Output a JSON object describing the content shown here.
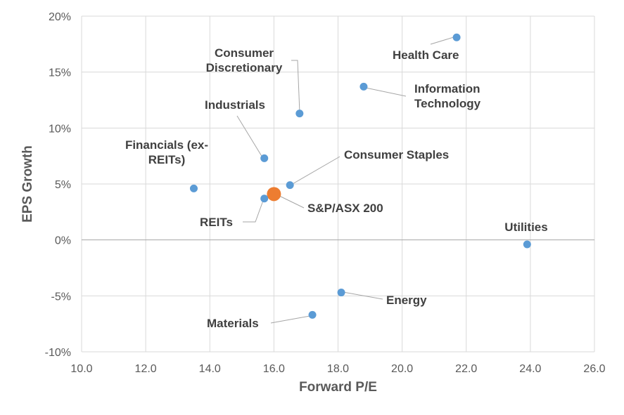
{
  "chart_data": {
    "type": "scatter",
    "xlabel": "Forward P/E",
    "ylabel": "EPS Growth",
    "xlim": [
      10,
      26
    ],
    "ylim": [
      -10,
      20
    ],
    "x_ticks": [
      "10.0",
      "12.0",
      "14.0",
      "16.0",
      "18.0",
      "20.0",
      "22.0",
      "24.0",
      "26.0"
    ],
    "y_ticks": [
      "-10%",
      "-5%",
      "0%",
      "5%",
      "10%",
      "15%",
      "20%"
    ],
    "grid": true,
    "legend": "none",
    "colors": {
      "sector": "#5b9bd5",
      "index": "#ed7d31"
    },
    "points": [
      {
        "name": "Health Care",
        "x": 21.7,
        "y": 18.1,
        "kind": "sector"
      },
      {
        "name": "Consumer Discretionary",
        "lines": [
          "Consumer",
          "Discretionary"
        ],
        "x": 16.8,
        "y": 11.3,
        "kind": "sector"
      },
      {
        "name": "Information Technology",
        "lines": [
          "Information",
          "Technology"
        ],
        "x": 18.8,
        "y": 13.7,
        "kind": "sector"
      },
      {
        "name": "Industrials",
        "x": 15.7,
        "y": 7.3,
        "kind": "sector"
      },
      {
        "name": "Financials (ex-REITs)",
        "lines": [
          "Financials (ex-",
          "REITs)"
        ],
        "x": 13.5,
        "y": 4.6,
        "kind": "sector"
      },
      {
        "name": "Consumer Staples",
        "x": 16.5,
        "y": 4.9,
        "kind": "sector"
      },
      {
        "name": "S&P/ASX 200",
        "x": 16.0,
        "y": 4.1,
        "kind": "index"
      },
      {
        "name": "REITs",
        "x": 15.7,
        "y": 3.7,
        "kind": "sector"
      },
      {
        "name": "Utilities",
        "x": 23.9,
        "y": -0.4,
        "kind": "sector"
      },
      {
        "name": "Energy",
        "x": 18.1,
        "y": -4.7,
        "kind": "sector"
      },
      {
        "name": "Materials",
        "x": 17.2,
        "y": -6.7,
        "kind": "sector"
      }
    ]
  }
}
